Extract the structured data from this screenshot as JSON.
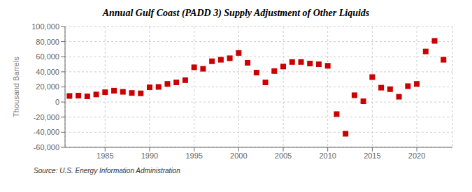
{
  "chart_data": {
    "type": "scatter",
    "title": "Annual Gulf Coast (PADD 3) Supply Adjustment of Other Liquids",
    "ylabel": "Thousand Barrels",
    "annotations": [
      "Source: U.S. Energy Information Administration"
    ],
    "x": [
      1981,
      1982,
      1983,
      1984,
      1985,
      1986,
      1987,
      1988,
      1989,
      1990,
      1991,
      1992,
      1993,
      1994,
      1995,
      1996,
      1997,
      1998,
      1999,
      2000,
      2001,
      2002,
      2003,
      2004,
      2005,
      2006,
      2007,
      2008,
      2009,
      2010,
      2011,
      2012,
      2013,
      2014,
      2015,
      2016,
      2017,
      2018,
      2019,
      2020,
      2021,
      2022,
      2023
    ],
    "values": [
      8000,
      8500,
      7500,
      10000,
      13000,
      15000,
      13500,
      12000,
      11500,
      19500,
      20000,
      24000,
      26000,
      29000,
      46000,
      44000,
      54000,
      56000,
      58000,
      65000,
      52000,
      39000,
      26000,
      41000,
      47000,
      53000,
      53000,
      51000,
      50000,
      48000,
      -16000,
      -42000,
      9000,
      1000,
      33000,
      19000,
      17000,
      7000,
      21000,
      24000,
      67000,
      81000,
      56000
    ],
    "color": "#cc0000",
    "marker": "square",
    "xlim": [
      1980.5,
      2024
    ],
    "xticks": [
      1985,
      1990,
      1995,
      2000,
      2005,
      2010,
      2015,
      2020
    ],
    "ylim": [
      -60000,
      100000
    ],
    "yticks": [
      {
        "value": -60000,
        "label": "-60,000"
      },
      {
        "value": -40000,
        "label": "-40,000"
      },
      {
        "value": -20000,
        "label": "-20,000"
      },
      0,
      {
        "value": 20000,
        "label": "20,000"
      },
      {
        "value": 40000,
        "label": "40,000"
      },
      {
        "value": 60000,
        "label": "60,000"
      },
      {
        "value": 80000,
        "label": "80,000"
      },
      {
        "value": 100000,
        "label": "100,000"
      }
    ],
    "grid": true
  }
}
